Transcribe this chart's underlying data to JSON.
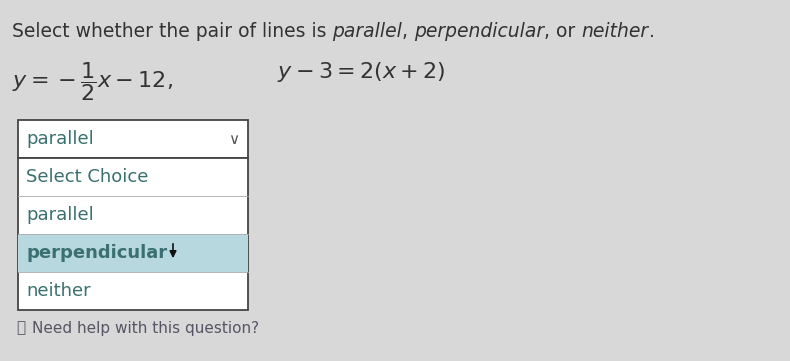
{
  "bg_color": "#d8d8d8",
  "title_parts": [
    [
      "Select whether the pair of lines is ",
      false
    ],
    [
      "parallel",
      true
    ],
    [
      ", ",
      false
    ],
    [
      "perpendicular",
      true
    ],
    [
      ", or ",
      false
    ],
    [
      "neither",
      true
    ],
    [
      ".",
      false
    ]
  ],
  "dropdown_selected": "parallel",
  "dropdown_items": [
    "Select Choice",
    "parallel",
    "perpendicular",
    "neither"
  ],
  "highlighted_item": "perpendicular",
  "need_help_text": "Need help with this question?",
  "box_border_color": "#444444",
  "highlight_color": "#b8d8e0",
  "text_color": "#333333",
  "dropdown_text_color": "#3a7070",
  "font_size_title": 13.5,
  "font_size_eq": 16,
  "font_size_dropdown": 13
}
